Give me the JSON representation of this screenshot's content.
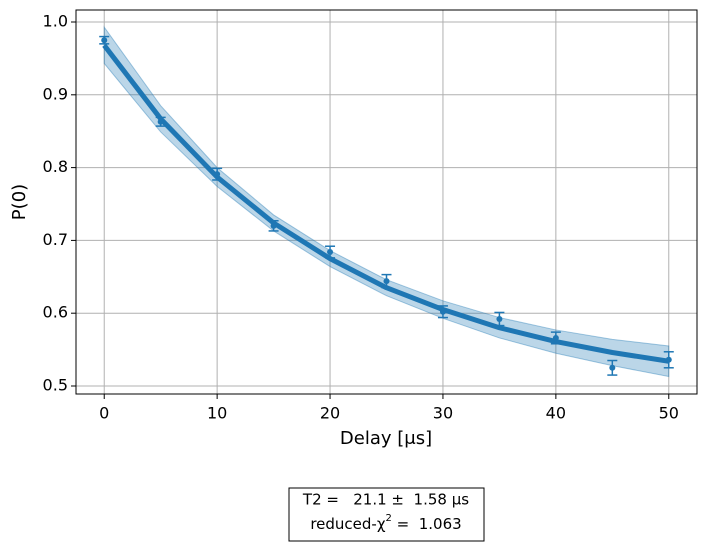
{
  "chart_data": {
    "type": "scatter",
    "xlabel": "Delay [μs]",
    "ylabel": "P(0)",
    "x": [
      0,
      5,
      10,
      15,
      20,
      25,
      30,
      35,
      40,
      45,
      50
    ],
    "values": [
      0.975,
      0.863,
      0.791,
      0.72,
      0.684,
      0.644,
      0.602,
      0.592,
      0.566,
      0.525,
      0.536
    ],
    "errors": [
      0.005,
      0.006,
      0.008,
      0.007,
      0.008,
      0.009,
      0.008,
      0.009,
      0.008,
      0.01,
      0.011
    ],
    "color": "#1f77b4",
    "fit": {
      "values": [
        0.968,
        0.867,
        0.787,
        0.724,
        0.675,
        0.635,
        0.605,
        0.58,
        0.561,
        0.546,
        0.534
      ],
      "lower": [
        0.943,
        0.849,
        0.774,
        0.713,
        0.664,
        0.624,
        0.593,
        0.566,
        0.545,
        0.528,
        0.513
      ],
      "upper": [
        0.993,
        0.885,
        0.8,
        0.735,
        0.686,
        0.646,
        0.617,
        0.594,
        0.577,
        0.564,
        0.555
      ]
    },
    "xlim": [
      -2.5,
      52.5
    ],
    "ylim": [
      0.489,
      1.0165
    ],
    "xticks": [
      0,
      10,
      20,
      30,
      40,
      50
    ],
    "yticks": [
      0.5,
      0.6,
      0.7,
      0.8,
      0.9,
      {
        "value": 1,
        "label": "1.0"
      }
    ],
    "grid": true,
    "fit_report": {
      "line1": "T2 =   21.1 ±  1.58 μs",
      "line2_main": "reduced-χ",
      "line2_sup": "2",
      "line2_tail": " =  1.063"
    }
  }
}
